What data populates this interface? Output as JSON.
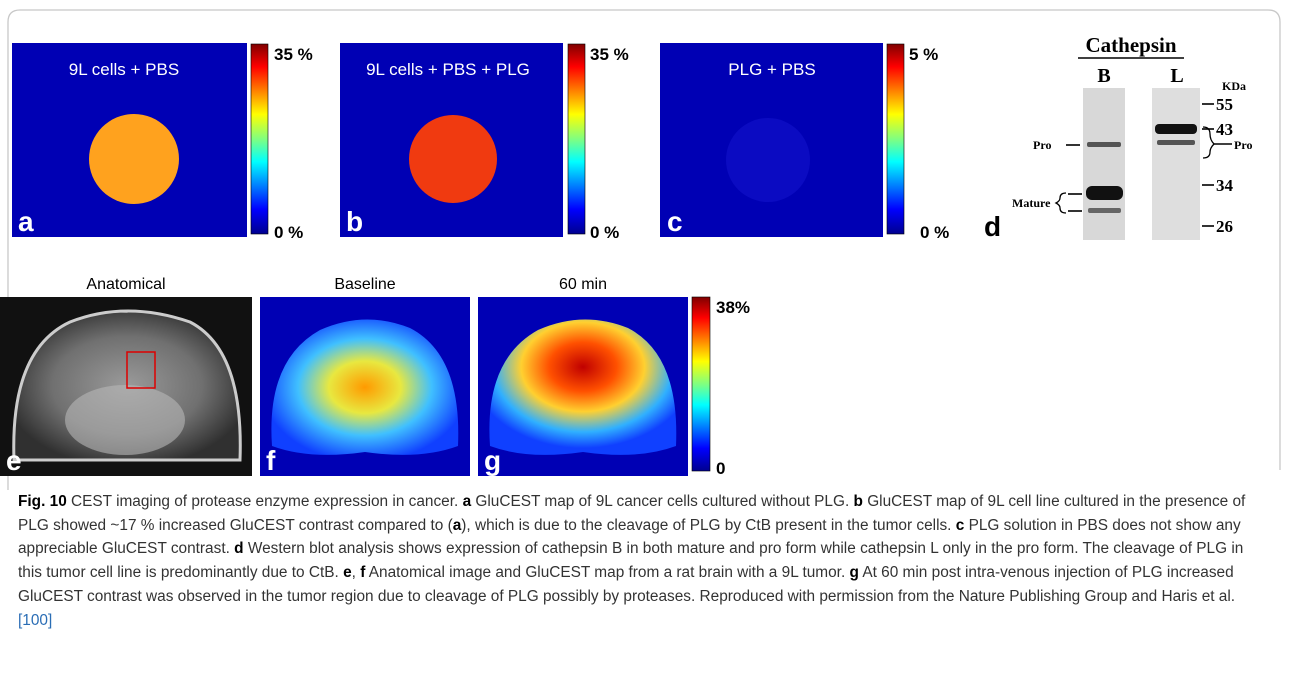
{
  "panels": {
    "a": {
      "letter": "a",
      "title": "9L cells + PBS",
      "scale_max": "35 %",
      "scale_min": "0 %"
    },
    "b": {
      "letter": "b",
      "title": "9L cells + PBS + PLG",
      "scale_max": "35 %",
      "scale_min": "0 %"
    },
    "c": {
      "letter": "c",
      "title": "PLG + PBS",
      "scale_max": "5 %",
      "scale_min": "0 %"
    },
    "d": {
      "letter": "d",
      "title": "Cathepsin",
      "lanes": [
        "B",
        "L"
      ],
      "unit": "KDa",
      "markers": [
        "55",
        "43",
        "34",
        "26"
      ],
      "pro_left": "Pro",
      "pro_right": "Pro",
      "mature": "Mature"
    },
    "e": {
      "letter": "e",
      "title": "Anatomical"
    },
    "f": {
      "letter": "f",
      "title": "Baseline"
    },
    "g": {
      "letter": "g",
      "title": "60 min",
      "scale_max": "38%",
      "scale_min": "0"
    }
  },
  "caption": [
    "Fig. 10",
    " CEST imaging of protease enzyme expression in cancer. ",
    "a",
    " GluCEST map of 9L cancer cells cultured without PLG. ",
    "b",
    " GluCEST map of 9L cell line cultured in the presence of PLG showed ~17 % increased GluCEST contrast compared to (",
    "a",
    "), which is due to the cleavage of PLG by CtB present in the tumor cells. ",
    "c",
    " PLG solution in PBS does not show any appreciable GluCEST contrast. ",
    "d",
    " Western blot analysis shows expression of cathepsin B in both mature and pro form while cathepsin L only in the pro form. The cleavage of PLG in this tumor cell line is predominantly due to CtB. ",
    "e",
    ", ",
    "f",
    " Anatomical image and GluCEST map from a rat brain with a 9L tumor. ",
    "g",
    " At 60 min post intra-venous injection of PLG increased GluCEST contrast was observed in the tumor region due to cleavage of PLG possibly by proteases. Reproduced with permission from the Nature Publishing Group and Haris et al. ",
    "[100]"
  ]
}
